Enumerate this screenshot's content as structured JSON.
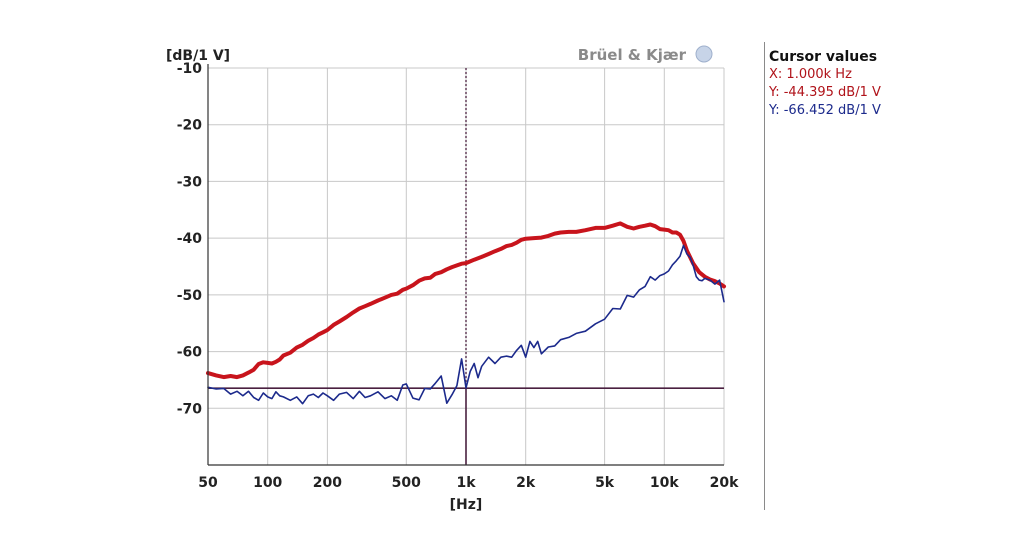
{
  "brand": "Brüel & Kjær",
  "cursor_panel": {
    "title": "Cursor values",
    "x": "X: 1.000k Hz",
    "y1": "Y: -44.395 dB/1 V",
    "y2": "Y: -66.452 dB/1 V"
  },
  "colors": {
    "series_red": "#c8141c",
    "series_blue": "#1c2a8c",
    "grid": "#c8c8c8",
    "cursor": "#4a2040"
  },
  "chart_data": {
    "type": "line",
    "xlabel": "[Hz]",
    "ylabel": "[dB/1 V]",
    "xscale": "log",
    "xlim": [
      50,
      20000
    ],
    "ylim": [
      -80,
      -10
    ],
    "xticks": [
      {
        "value": 50,
        "label": "50"
      },
      {
        "value": 100,
        "label": "100"
      },
      {
        "value": 200,
        "label": "200"
      },
      {
        "value": 500,
        "label": "500"
      },
      {
        "value": 1000,
        "label": "1k"
      },
      {
        "value": 2000,
        "label": "2k"
      },
      {
        "value": 5000,
        "label": "5k"
      },
      {
        "value": 10000,
        "label": "10k"
      },
      {
        "value": 20000,
        "label": "20k"
      }
    ],
    "yticks": [
      {
        "value": -10,
        "label": "-10"
      },
      {
        "value": -20,
        "label": "-20"
      },
      {
        "value": -30,
        "label": "-30"
      },
      {
        "value": -40,
        "label": "-40"
      },
      {
        "value": -50,
        "label": "-50"
      },
      {
        "value": -60,
        "label": "-60"
      },
      {
        "value": -70,
        "label": "-70"
      }
    ],
    "grid": true,
    "cursor": {
      "x": 1000,
      "y": -66.452
    },
    "series": [
      {
        "color": "#c8141c",
        "points": [
          [
            50,
            -63.8
          ],
          [
            55,
            -64.2
          ],
          [
            60,
            -64.5
          ],
          [
            65,
            -64.3
          ],
          [
            70,
            -64.5
          ],
          [
            75,
            -64.2
          ],
          [
            80,
            -63.7
          ],
          [
            85,
            -63.2
          ],
          [
            90,
            -62.2
          ],
          [
            95,
            -61.9
          ],
          [
            100,
            -62.0
          ],
          [
            105,
            -62.1
          ],
          [
            110,
            -61.8
          ],
          [
            115,
            -61.4
          ],
          [
            120,
            -60.7
          ],
          [
            130,
            -60.2
          ],
          [
            140,
            -59.3
          ],
          [
            150,
            -58.8
          ],
          [
            160,
            -58.1
          ],
          [
            170,
            -57.6
          ],
          [
            180,
            -57.0
          ],
          [
            190,
            -56.6
          ],
          [
            200,
            -56.2
          ],
          [
            215,
            -55.3
          ],
          [
            230,
            -54.7
          ],
          [
            250,
            -53.9
          ],
          [
            270,
            -53.1
          ],
          [
            290,
            -52.4
          ],
          [
            310,
            -52.0
          ],
          [
            330,
            -51.6
          ],
          [
            360,
            -51.0
          ],
          [
            390,
            -50.5
          ],
          [
            420,
            -50.0
          ],
          [
            450,
            -49.8
          ],
          [
            480,
            -49.1
          ],
          [
            500,
            -48.9
          ],
          [
            540,
            -48.3
          ],
          [
            580,
            -47.5
          ],
          [
            620,
            -47.1
          ],
          [
            660,
            -47.0
          ],
          [
            700,
            -46.3
          ],
          [
            750,
            -46.0
          ],
          [
            800,
            -45.5
          ],
          [
            850,
            -45.1
          ],
          [
            900,
            -44.8
          ],
          [
            950,
            -44.5
          ],
          [
            1000,
            -44.4
          ],
          [
            1100,
            -43.8
          ],
          [
            1200,
            -43.3
          ],
          [
            1300,
            -42.8
          ],
          [
            1400,
            -42.3
          ],
          [
            1500,
            -41.9
          ],
          [
            1600,
            -41.4
          ],
          [
            1700,
            -41.2
          ],
          [
            1800,
            -40.8
          ],
          [
            1900,
            -40.3
          ],
          [
            2000,
            -40.1
          ],
          [
            2200,
            -40.0
          ],
          [
            2400,
            -39.9
          ],
          [
            2600,
            -39.6
          ],
          [
            2800,
            -39.2
          ],
          [
            3000,
            -39.0
          ],
          [
            3300,
            -38.9
          ],
          [
            3600,
            -38.9
          ],
          [
            4000,
            -38.6
          ],
          [
            4500,
            -38.2
          ],
          [
            5000,
            -38.2
          ],
          [
            5500,
            -37.8
          ],
          [
            6000,
            -37.4
          ],
          [
            6500,
            -38.0
          ],
          [
            7000,
            -38.3
          ],
          [
            7500,
            -38.0
          ],
          [
            8000,
            -37.8
          ],
          [
            8500,
            -37.6
          ],
          [
            9000,
            -37.9
          ],
          [
            9500,
            -38.4
          ],
          [
            10000,
            -38.5
          ],
          [
            10500,
            -38.6
          ],
          [
            11000,
            -39.0
          ],
          [
            11500,
            -39.0
          ],
          [
            12000,
            -39.4
          ],
          [
            12500,
            -40.5
          ],
          [
            13000,
            -42.2
          ],
          [
            14000,
            -44.5
          ],
          [
            15000,
            -46.0
          ],
          [
            16000,
            -46.8
          ],
          [
            17000,
            -47.3
          ],
          [
            18000,
            -47.6
          ],
          [
            19000,
            -48.0
          ],
          [
            20000,
            -48.5
          ]
        ]
      },
      {
        "color": "#1c2a8c",
        "points": [
          [
            50,
            -66.3
          ],
          [
            55,
            -66.6
          ],
          [
            60,
            -66.5
          ],
          [
            65,
            -67.5
          ],
          [
            70,
            -67.0
          ],
          [
            75,
            -67.8
          ],
          [
            80,
            -67.0
          ],
          [
            85,
            -68.1
          ],
          [
            90,
            -68.6
          ],
          [
            95,
            -67.3
          ],
          [
            100,
            -68.0
          ],
          [
            105,
            -68.3
          ],
          [
            110,
            -67.1
          ],
          [
            115,
            -67.8
          ],
          [
            120,
            -68.0
          ],
          [
            130,
            -68.6
          ],
          [
            140,
            -68.0
          ],
          [
            150,
            -69.2
          ],
          [
            160,
            -67.8
          ],
          [
            170,
            -67.5
          ],
          [
            180,
            -68.1
          ],
          [
            190,
            -67.3
          ],
          [
            200,
            -67.8
          ],
          [
            215,
            -68.6
          ],
          [
            230,
            -67.5
          ],
          [
            250,
            -67.2
          ],
          [
            270,
            -68.3
          ],
          [
            290,
            -67.0
          ],
          [
            310,
            -68.1
          ],
          [
            330,
            -67.8
          ],
          [
            360,
            -67.1
          ],
          [
            390,
            -68.3
          ],
          [
            420,
            -67.8
          ],
          [
            450,
            -68.6
          ],
          [
            480,
            -65.9
          ],
          [
            500,
            -65.7
          ],
          [
            540,
            -68.2
          ],
          [
            580,
            -68.5
          ],
          [
            620,
            -66.5
          ],
          [
            660,
            -66.6
          ],
          [
            700,
            -65.6
          ],
          [
            750,
            -64.3
          ],
          [
            800,
            -69.1
          ],
          [
            850,
            -67.6
          ],
          [
            900,
            -66.0
          ],
          [
            950,
            -61.3
          ],
          [
            1000,
            -66.4
          ],
          [
            1050,
            -63.5
          ],
          [
            1100,
            -62.1
          ],
          [
            1150,
            -64.6
          ],
          [
            1200,
            -62.6
          ],
          [
            1300,
            -61.0
          ],
          [
            1400,
            -62.1
          ],
          [
            1500,
            -61.0
          ],
          [
            1600,
            -60.8
          ],
          [
            1700,
            -61.0
          ],
          [
            1800,
            -59.8
          ],
          [
            1900,
            -58.9
          ],
          [
            2000,
            -61.0
          ],
          [
            2100,
            -58.2
          ],
          [
            2200,
            -59.3
          ],
          [
            2300,
            -58.2
          ],
          [
            2400,
            -60.4
          ],
          [
            2600,
            -59.2
          ],
          [
            2800,
            -59.0
          ],
          [
            3000,
            -57.9
          ],
          [
            3300,
            -57.5
          ],
          [
            3600,
            -56.8
          ],
          [
            4000,
            -56.4
          ],
          [
            4500,
            -55.1
          ],
          [
            5000,
            -54.3
          ],
          [
            5500,
            -52.4
          ],
          [
            6000,
            -52.5
          ],
          [
            6500,
            -50.1
          ],
          [
            7000,
            -50.4
          ],
          [
            7500,
            -49.1
          ],
          [
            8000,
            -48.5
          ],
          [
            8500,
            -46.8
          ],
          [
            9000,
            -47.4
          ],
          [
            9500,
            -46.6
          ],
          [
            10000,
            -46.3
          ],
          [
            10500,
            -45.8
          ],
          [
            11000,
            -44.7
          ],
          [
            11500,
            -44.0
          ],
          [
            12000,
            -43.2
          ],
          [
            12500,
            -41.3
          ],
          [
            13000,
            -42.8
          ],
          [
            13500,
            -43.4
          ],
          [
            14000,
            -44.9
          ],
          [
            14500,
            -46.8
          ],
          [
            15000,
            -47.4
          ],
          [
            15500,
            -47.5
          ],
          [
            16000,
            -47.1
          ],
          [
            17000,
            -47.4
          ],
          [
            18000,
            -48.1
          ],
          [
            19000,
            -47.4
          ],
          [
            20000,
            -51.2
          ]
        ]
      }
    ]
  }
}
